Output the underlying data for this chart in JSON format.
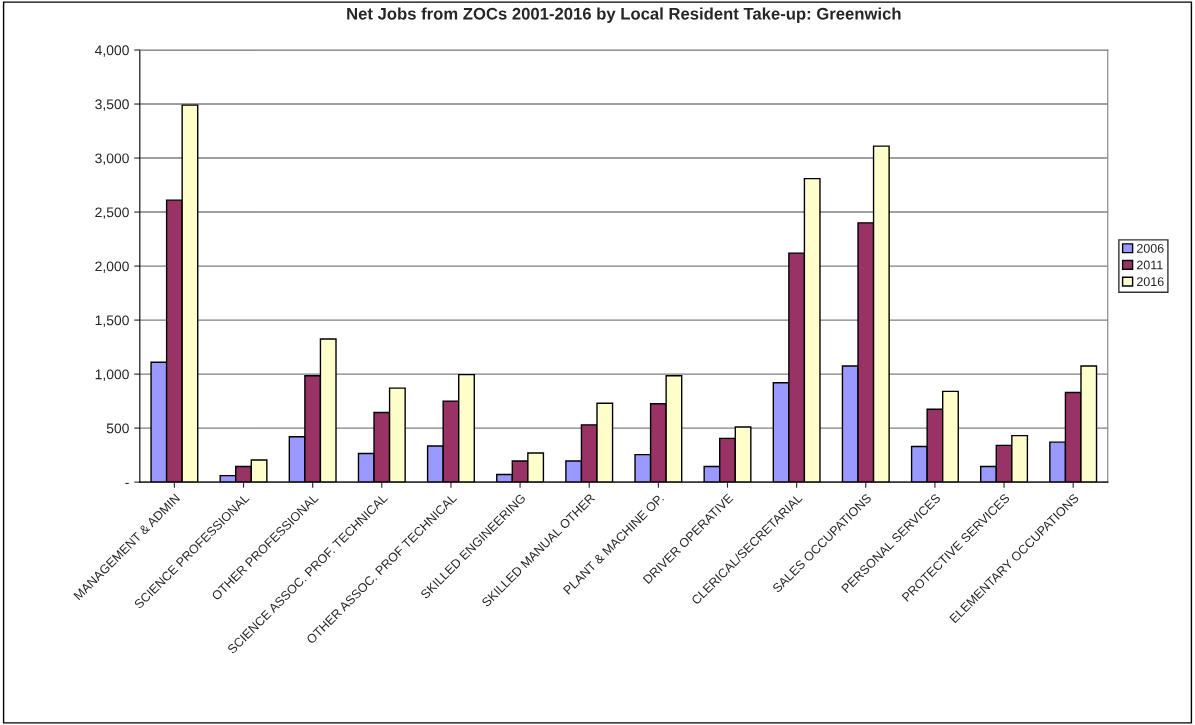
{
  "chart_data": {
    "type": "bar",
    "title": "Net Jobs from ZOCs 2001-2016 by Local Resident Take-up: Greenwich",
    "categories": [
      "MANAGEMENT & ADMIN",
      "SCIENCE PROFESSIONAL",
      "OTHER PROFESSIONAL",
      "SCIENCE ASSOC. PROF. TECHNICAL",
      "OTHER ASSOC. PROF TECHNICAL",
      "SKILLED ENGINEERING",
      "SKILLED MANUAL OTHER",
      "PLANT & MACHINE OP.",
      "DRIVER OPERATIVE",
      "CLERICAL/SECRETARIAL",
      "SALES OCCUPATIONS",
      "PERSONAL SERVICES",
      "PROTECTIVE SERVICES",
      "ELEMENTARY OCCUPATIONS"
    ],
    "series": [
      {
        "name": "2006",
        "color": "#9999ff",
        "values": [
          1110,
          60,
          420,
          265,
          335,
          70,
          195,
          255,
          145,
          920,
          1075,
          330,
          145,
          370
        ]
      },
      {
        "name": "2011",
        "color": "#993366",
        "values": [
          2610,
          145,
          985,
          645,
          750,
          195,
          530,
          725,
          405,
          2120,
          2400,
          675,
          340,
          830
        ]
      },
      {
        "name": "2016",
        "color": "#ffffcc",
        "values": [
          3490,
          205,
          1325,
          870,
          995,
          270,
          730,
          985,
          510,
          2810,
          3110,
          840,
          430,
          1075
        ]
      }
    ],
    "ylim": [
      0,
      4000
    ],
    "yticks": [
      {
        "value": 0,
        "label": "-"
      },
      {
        "value": 500,
        "label": "500"
      },
      {
        "value": 1000,
        "label": "1,000"
      },
      {
        "value": 1500,
        "label": "1,500"
      },
      {
        "value": 2000,
        "label": "2,000"
      },
      {
        "value": 2500,
        "label": "2,500"
      },
      {
        "value": 3000,
        "label": "3,000"
      },
      {
        "value": 3500,
        "label": "3,500"
      },
      {
        "value": 4000,
        "label": "4,000"
      }
    ],
    "grid": "y",
    "legend": "right"
  }
}
